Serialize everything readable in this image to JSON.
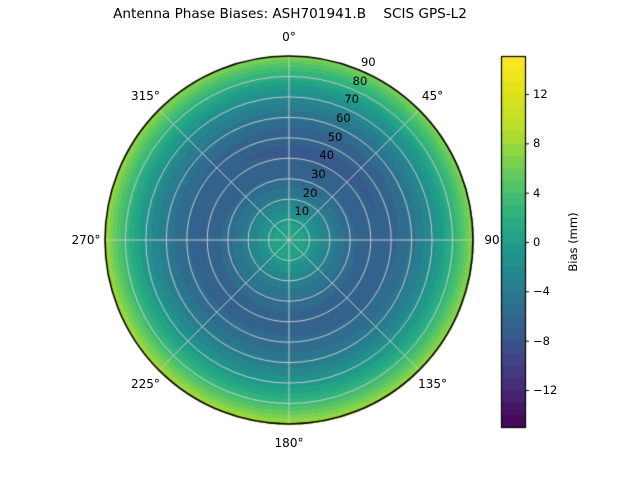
{
  "chart_data": {
    "type": "heatmap",
    "projection": "polar",
    "title": "Antenna Phase Biases: ASH701941.B    SCIS GPS-L2",
    "theta_zero_location": "top",
    "theta_direction": "clockwise",
    "theta_ticks": [
      {
        "angle_deg": 0,
        "label": "0°"
      },
      {
        "angle_deg": 45,
        "label": "45°"
      },
      {
        "angle_deg": 90,
        "label": "90"
      },
      {
        "angle_deg": 135,
        "label": "135°"
      },
      {
        "angle_deg": 180,
        "label": "180°"
      },
      {
        "angle_deg": 225,
        "label": "225°"
      },
      {
        "angle_deg": 270,
        "label": "270°"
      },
      {
        "angle_deg": 315,
        "label": "315°"
      }
    ],
    "r_ticks": [
      {
        "value": 10,
        "label": "10"
      },
      {
        "value": 20,
        "label": "20"
      },
      {
        "value": 30,
        "label": "30"
      },
      {
        "value": 40,
        "label": "40"
      },
      {
        "value": 50,
        "label": "50"
      },
      {
        "value": 60,
        "label": "60"
      },
      {
        "value": 70,
        "label": "70"
      },
      {
        "value": 80,
        "label": "80"
      },
      {
        "value": 90,
        "label": "90"
      }
    ],
    "r_max": 90,
    "radial_profile": {
      "zenith_deg": [
        0,
        8,
        15,
        25,
        35,
        45,
        55,
        65,
        75,
        82,
        87,
        90
      ],
      "bias_mm": [
        0.6,
        0.1,
        -1.9,
        -4.6,
        -6.4,
        -6.7,
        -5.5,
        -3.0,
        0.3,
        3.5,
        6.0,
        7.8
      ]
    },
    "azimuthal_variation": {
      "amplitude_mm_at_rim": 1.0,
      "phase_deg": 200
    },
    "colormap": {
      "name": "viridis",
      "anchors": [
        "#440154",
        "#482878",
        "#3e4a89",
        "#31688e",
        "#26828e",
        "#1f9e89",
        "#35b779",
        "#6ece58",
        "#b5de2b",
        "#dde318",
        "#fde725"
      ]
    },
    "colorbar": {
      "label": "Bias (mm)",
      "vmin": -15,
      "vmax": 15,
      "band_step_mm": 1,
      "ticks": [
        {
          "value": 12,
          "label": "12"
        },
        {
          "value": 8,
          "label": "8"
        },
        {
          "value": 4,
          "label": "4"
        },
        {
          "value": 0,
          "label": "0"
        },
        {
          "value": -4,
          "label": "−4"
        },
        {
          "value": -8,
          "label": "−8"
        },
        {
          "value": -12,
          "label": "−12"
        }
      ]
    },
    "grid": {
      "line_color": "#cdcdcd",
      "spine_color": "#000000",
      "spoke_step_deg": 45,
      "ring_step": 10
    }
  }
}
